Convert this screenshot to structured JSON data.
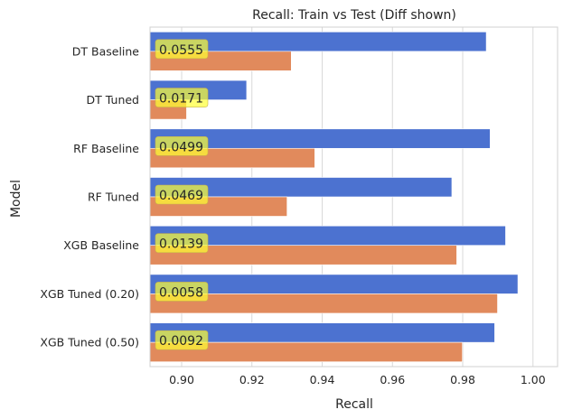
{
  "chart_data": {
    "type": "bar",
    "orientation": "horizontal",
    "title": "Recall: Train vs Test (Diff shown)",
    "xlabel": "Recall",
    "ylabel": "Model",
    "xlim": [
      0.891,
      1.007
    ],
    "xticks": [
      "0.90",
      "0.92",
      "0.94",
      "0.96",
      "0.98",
      "1.00"
    ],
    "xtick_values": [
      0.9,
      0.92,
      0.94,
      0.96,
      0.98,
      1.0
    ],
    "grid": "vertical",
    "legend": "none",
    "categories": [
      "DT Baseline",
      "DT Tuned",
      "RF Baseline",
      "RF Tuned",
      "XGB Baseline",
      "XGB Tuned (0.20)",
      "XGB Tuned (0.50)"
    ],
    "series": [
      {
        "color": "#4c72d0",
        "values": [
          0.9867,
          0.9185,
          0.9878,
          0.9769,
          0.9922,
          0.9957,
          0.9891
        ]
      },
      {
        "color": "#e18a5c",
        "values": [
          0.9312,
          0.9014,
          0.9379,
          0.93,
          0.9783,
          0.9899,
          0.9799
        ]
      }
    ],
    "annotations": [
      "0.0555",
      "0.0171",
      "0.0499",
      "0.0469",
      "0.0139",
      "0.0058",
      "0.0092"
    ],
    "annotation_color": "#ffff33"
  }
}
